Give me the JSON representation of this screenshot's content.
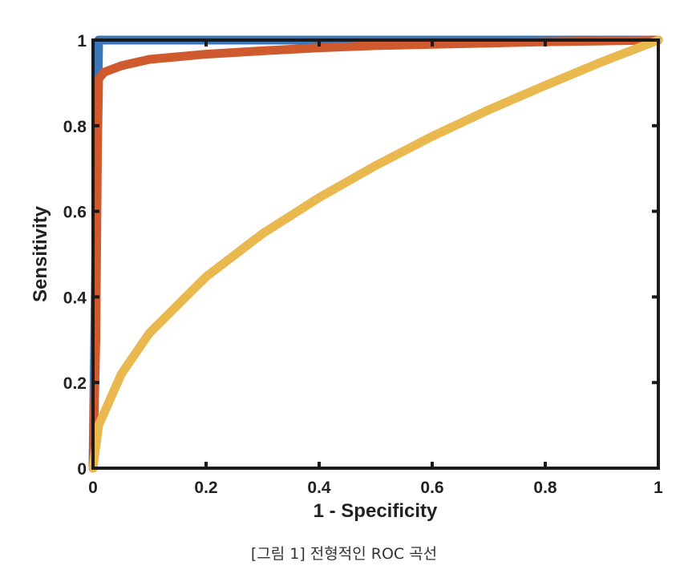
{
  "chart_data": {
    "type": "line",
    "title": "",
    "xlabel": "1 - Specificity",
    "ylabel": "Sensitivity",
    "xlim": [
      0,
      1
    ],
    "ylim": [
      0,
      1
    ],
    "xticks": [
      "0",
      "0.2",
      "0.4",
      "0.6",
      "0.8",
      "1"
    ],
    "yticks": [
      "0",
      "0.2",
      "0.4",
      "0.6",
      "0.8",
      "1"
    ],
    "grid": false,
    "legend": "none",
    "series": [
      {
        "color": "#3a76b8",
        "x": [
          0,
          0.01,
          1
        ],
        "y": [
          0,
          1,
          1
        ]
      },
      {
        "color": "#cf5a2e",
        "x": [
          0,
          0.005,
          0.008,
          0.01,
          0.02,
          0.05,
          0.1,
          0.2,
          0.3,
          0.4,
          0.5,
          0.6,
          0.7,
          0.8,
          0.9,
          1
        ],
        "y": [
          0,
          0.3,
          0.75,
          0.91,
          0.925,
          0.94,
          0.955,
          0.967,
          0.975,
          0.982,
          0.987,
          0.99,
          0.993,
          0.996,
          0.998,
          1
        ]
      },
      {
        "color": "#e9b84e",
        "x": [
          0,
          0.01,
          0.05,
          0.1,
          0.2,
          0.3,
          0.4,
          0.5,
          0.6,
          0.7,
          0.8,
          0.9,
          1
        ],
        "y": [
          0,
          0.1,
          0.22,
          0.316,
          0.447,
          0.548,
          0.632,
          0.707,
          0.775,
          0.837,
          0.894,
          0.949,
          1
        ]
      }
    ]
  },
  "caption": "[그림 1] 전형적인 ROC 곡선"
}
